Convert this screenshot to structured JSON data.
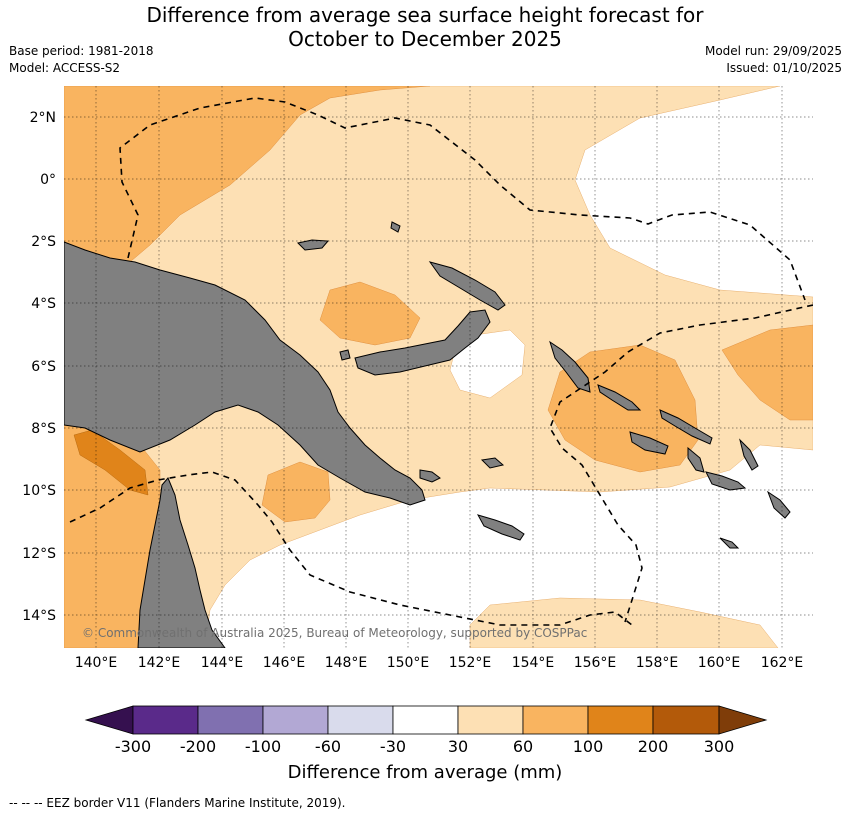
{
  "title_line1": "Difference from average sea surface height forecast for",
  "title_line2": "October to December 2025",
  "base_period": "Base period: 1981-2018",
  "model": "Model: ACCESS-S2",
  "model_run": "Model run: 29/09/2025",
  "issued": "Issued: 01/10/2025",
  "copyright": "© Commonwealth of Australia 2025, Bureau of Meteorology, supported by COSPPac",
  "footer": "-- -- -- EEZ border V11 (Flanders Marine Institute, 2019).",
  "lat_labels": [
    "2°N",
    "0°",
    "2°S",
    "4°S",
    "6°S",
    "8°S",
    "10°S",
    "12°S",
    "14°S"
  ],
  "lon_labels": [
    "140°E",
    "142°E",
    "144°E",
    "146°E",
    "148°E",
    "150°E",
    "152°E",
    "154°E",
    "156°E",
    "158°E",
    "160°E",
    "162°E"
  ],
  "colorbar": {
    "title": "Difference from average (mm)",
    "ticks": [
      "-300",
      "-200",
      "-100",
      "-60",
      "-30",
      "30",
      "60",
      "100",
      "200",
      "300"
    ],
    "colors": [
      "#5a2a8a",
      "#8070b0",
      "#b2a8d4",
      "#d9dbec",
      "#ffffff",
      "#fde0b4",
      "#f9b460",
      "#e0841a",
      "#b35a0a"
    ],
    "under_color": "#35104f",
    "over_color": "#7f3d09"
  },
  "colors": {
    "land": "#808080",
    "class_30_60": "#fde0b4",
    "class_60_100": "#f9b460",
    "class_100_200": "#e0841a"
  }
}
